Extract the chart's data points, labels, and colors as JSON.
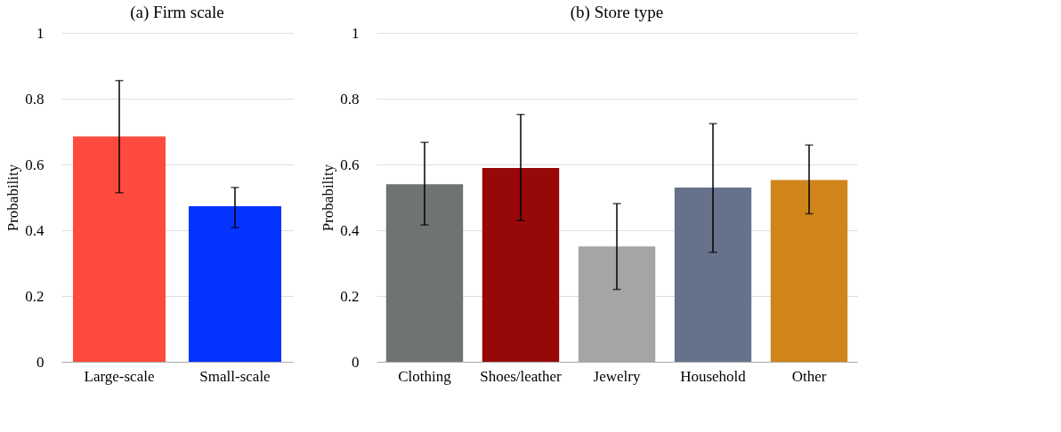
{
  "chart_data": [
    {
      "type": "bar",
      "title": "(a) Firm scale",
      "ylabel": "Probability",
      "categories": [
        "Large-scale",
        "Small-scale"
      ],
      "values": [
        0.685,
        0.473
      ],
      "errors": [
        [
          0.514,
          0.855
        ],
        [
          0.408,
          0.53
        ]
      ],
      "colors": [
        "#ff4b3e",
        "#0433ff"
      ],
      "ylim": [
        0,
        1
      ],
      "yticks": [
        0,
        0.2,
        0.4,
        0.6,
        0.8,
        1
      ],
      "grid": "y"
    },
    {
      "type": "bar",
      "title": "(b) Store type",
      "ylabel": "Probability",
      "categories": [
        "Clothing",
        "Shoes/leather",
        "Jewelry",
        "Household",
        "Other"
      ],
      "values": [
        0.54,
        0.589,
        0.351,
        0.53,
        0.553
      ],
      "errors": [
        [
          0.416,
          0.667
        ],
        [
          0.429,
          0.752
        ],
        [
          0.22,
          0.481
        ],
        [
          0.333,
          0.724
        ],
        [
          0.45,
          0.659
        ]
      ],
      "colors": [
        "#6e7470",
        "#970808",
        "#a5a5a5",
        "#66728c",
        "#cf851a"
      ],
      "ylim": [
        0,
        1
      ],
      "yticks": [
        0,
        0.2,
        0.4,
        0.6,
        0.8,
        1
      ],
      "grid": "y"
    }
  ]
}
